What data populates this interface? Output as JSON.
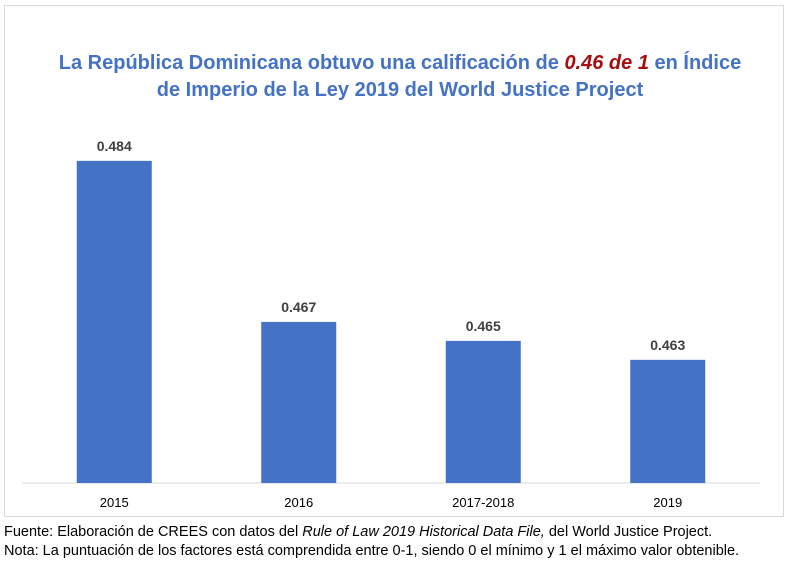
{
  "chart_data": {
    "type": "bar",
    "title_parts": [
      "La República Dominicana obtuvo una calificación de ",
      "0.46 de 1",
      " en Índice",
      "de Imperio de la Ley 2019 del World Justice Project"
    ],
    "categories": [
      "2015",
      "2016",
      "2017-2018",
      "2019"
    ],
    "values": [
      0.484,
      0.467,
      0.465,
      0.463
    ],
    "data_labels": [
      "0.484",
      "0.467",
      "0.465",
      "0.463"
    ],
    "xlabel": "",
    "ylabel": "",
    "ylim": [
      0.45,
      0.49
    ],
    "grid": false,
    "colors": {
      "bar": "#4472C4",
      "title": "#4472C4",
      "highlight": "#A50F0F"
    }
  },
  "footer": {
    "source_prefix": "Fuente: Elaboración de CREES con datos del ",
    "source_italic": "Rule of Law 2019 Historical Data File,",
    "source_suffix": " del World Justice Project.",
    "note": "Nota: La puntuación de los factores está comprendida entre 0-1, siendo 0 el mínimo y 1 el máximo valor obtenible."
  }
}
